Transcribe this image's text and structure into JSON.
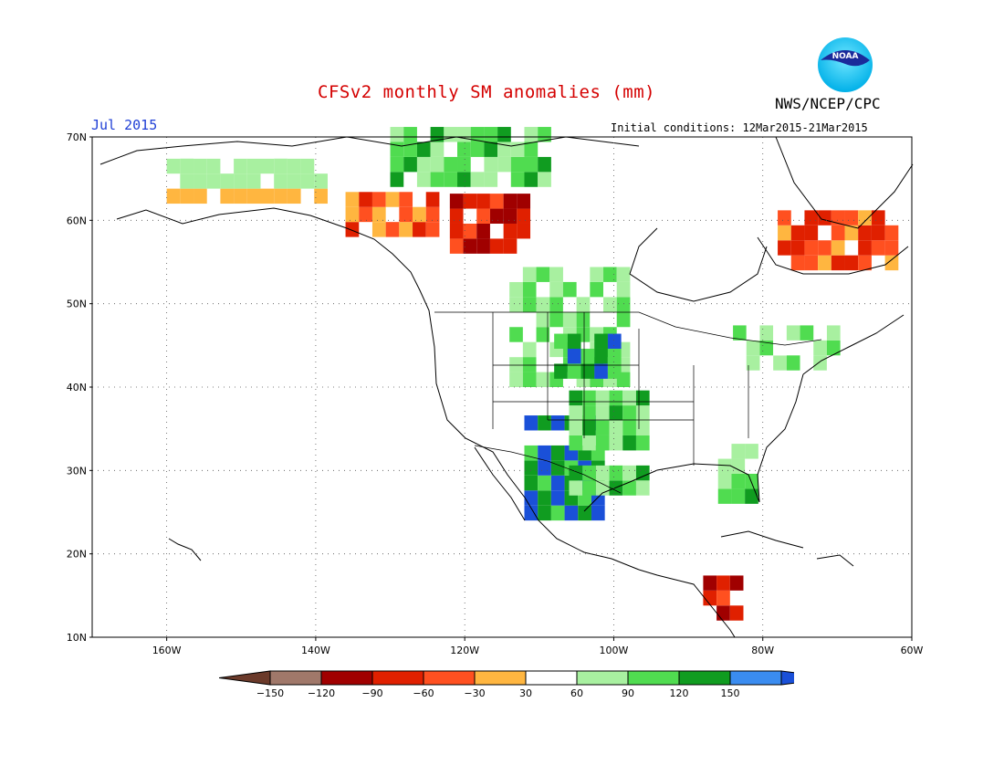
{
  "header": {
    "title": "CFSv2 monthly SM anomalies (mm)",
    "valid_month": "Jul 2015",
    "initial_conditions": "Initial conditions: 12Mar2015-21Mar2015",
    "agency": "NWS/NCEP/CPC",
    "logo_text": "NOAA"
  },
  "map": {
    "lon_range": [
      -170,
      -60
    ],
    "lat_range": [
      10,
      70
    ],
    "lat_labels": [
      "70N",
      "60N",
      "50N",
      "40N",
      "30N",
      "20N",
      "10N"
    ],
    "lat_values": [
      70,
      60,
      50,
      40,
      30,
      20,
      10
    ],
    "lon_labels": [
      "160W",
      "140W",
      "120W",
      "100W",
      "80W",
      "60W"
    ],
    "lon_values": [
      -160,
      -140,
      -120,
      -100,
      -80,
      -60
    ],
    "grid": true
  },
  "colorbar": {
    "labels": [
      "−150",
      "−120",
      "−90",
      "−60",
      "−30",
      "30",
      "60",
      "90",
      "120",
      "150"
    ],
    "colors": [
      "#6b3a2a",
      "#a0786a",
      "#a00000",
      "#e02000",
      "#ff5020",
      "#ffb640",
      "#ffffff",
      "#a8f0a0",
      "#50dc50",
      "#109c20",
      "#3a8cf0",
      "#1a50d8"
    ]
  },
  "anomaly_regions": [
    {
      "lon": [
        -122,
        -112
      ],
      "lat": [
        56,
        63
      ],
      "value": -90
    },
    {
      "lon": [
        -136,
        -124
      ],
      "lat": [
        58,
        63
      ],
      "value": -45
    },
    {
      "lon": [
        -78,
        -62
      ],
      "lat": [
        54,
        61
      ],
      "value": -60
    },
    {
      "lon": [
        -114,
        -98
      ],
      "lat": [
        40,
        54
      ],
      "value": 75
    },
    {
      "lon": [
        -108,
        -100
      ],
      "lat": [
        41,
        45
      ],
      "value": 130
    },
    {
      "lon": [
        -112,
        -102
      ],
      "lat": [
        24,
        36
      ],
      "value": 135
    },
    {
      "lon": [
        -106,
        -96
      ],
      "lat": [
        27,
        38
      ],
      "value": 90
    },
    {
      "lon": [
        -84,
        -70
      ],
      "lat": [
        42,
        47
      ],
      "value": 70
    },
    {
      "lon": [
        -86,
        -82
      ],
      "lat": [
        26,
        33
      ],
      "value": 90
    },
    {
      "lon": [
        -88,
        -84
      ],
      "lat": [
        12,
        16
      ],
      "value": -80
    },
    {
      "lon": [
        -130,
        -110
      ],
      "lat": [
        64,
        70
      ],
      "value": 90
    },
    {
      "lon": [
        -160,
        -140
      ],
      "lat": [
        62,
        70
      ],
      "value": 45
    }
  ]
}
